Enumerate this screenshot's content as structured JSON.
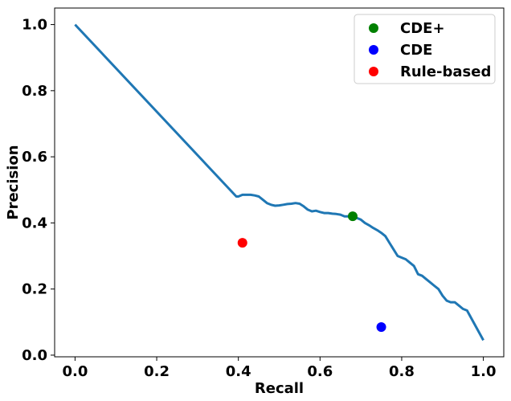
{
  "chart_data": {
    "type": "line",
    "title": "",
    "xlabel": "Recall",
    "ylabel": "Precision",
    "xlim": [
      -0.05,
      1.05
    ],
    "ylim": [
      -0.005,
      1.05
    ],
    "x_ticks": [
      0.0,
      0.2,
      0.4,
      0.6,
      0.8,
      1.0
    ],
    "x_tick_labels": [
      "0.0",
      "0.2",
      "0.4",
      "0.6",
      "0.8",
      "1.0"
    ],
    "y_ticks": [
      0.0,
      0.2,
      0.4,
      0.6,
      0.8,
      1.0
    ],
    "y_tick_labels": [
      "0.0",
      "0.2",
      "0.4",
      "0.6",
      "0.8",
      "1.0"
    ],
    "grid": false,
    "legend_position": "top-right",
    "curve": {
      "color": "#1f77b4",
      "x": [
        0.0,
        0.395,
        0.4,
        0.41,
        0.42,
        0.43,
        0.44,
        0.45,
        0.46,
        0.47,
        0.48,
        0.49,
        0.5,
        0.51,
        0.52,
        0.53,
        0.54,
        0.55,
        0.56,
        0.57,
        0.58,
        0.59,
        0.6,
        0.61,
        0.62,
        0.63,
        0.64,
        0.65,
        0.66,
        0.67,
        0.68,
        0.69,
        0.7,
        0.71,
        0.72,
        0.73,
        0.74,
        0.75,
        0.76,
        0.77,
        0.78,
        0.79,
        0.8,
        0.81,
        0.82,
        0.83,
        0.84,
        0.85,
        0.86,
        0.87,
        0.88,
        0.89,
        0.9,
        0.91,
        0.92,
        0.93,
        0.94,
        0.95,
        0.96,
        1.0
      ],
      "y": [
        1.0,
        0.48,
        0.48,
        0.485,
        0.485,
        0.485,
        0.483,
        0.48,
        0.47,
        0.46,
        0.455,
        0.452,
        0.453,
        0.455,
        0.457,
        0.458,
        0.46,
        0.458,
        0.45,
        0.44,
        0.435,
        0.437,
        0.433,
        0.43,
        0.43,
        0.428,
        0.427,
        0.425,
        0.42,
        0.42,
        0.42,
        0.415,
        0.41,
        0.4,
        0.393,
        0.385,
        0.378,
        0.37,
        0.36,
        0.34,
        0.32,
        0.3,
        0.295,
        0.29,
        0.28,
        0.27,
        0.245,
        0.24,
        0.23,
        0.22,
        0.21,
        0.2,
        0.18,
        0.165,
        0.16,
        0.16,
        0.15,
        0.14,
        0.135,
        0.045
      ]
    },
    "points": [
      {
        "name": "CDE+",
        "x": 0.68,
        "y": 0.42,
        "color": "#008000"
      },
      {
        "name": "CDE",
        "x": 0.75,
        "y": 0.085,
        "color": "#0000ff"
      },
      {
        "name": "Rule-based",
        "x": 0.41,
        "y": 0.34,
        "color": "#ff0000"
      }
    ]
  }
}
